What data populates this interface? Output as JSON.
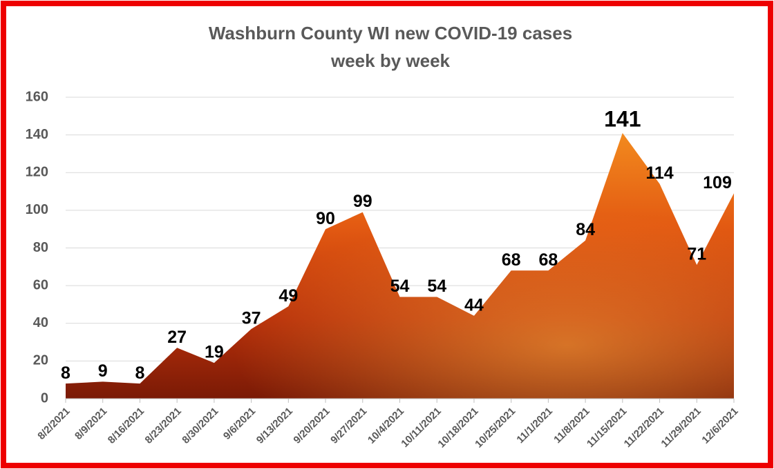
{
  "chart_data": {
    "type": "area",
    "title": [
      "Washburn County WI new COVID-19 cases",
      "week by week"
    ],
    "categories": [
      "8/2/2021",
      "8/9/2021",
      "8/16/2021",
      "8/23/2021",
      "8/30/2021",
      "9/6/2021",
      "9/13/2021",
      "9/20/2021",
      "9/27/2021",
      "10/4/2021",
      "10/11/2021",
      "10/18/2021",
      "10/25/2021",
      "11/1/2021",
      "11/8/2021",
      "11/15/2021",
      "11/22/2021",
      "11/29/2021",
      "12/6/2021"
    ],
    "values": [
      8,
      9,
      8,
      27,
      19,
      37,
      49,
      90,
      99,
      54,
      54,
      44,
      68,
      68,
      84,
      141,
      114,
      71,
      109
    ],
    "color": "#d2430f",
    "ylim": [
      0,
      160
    ],
    "yticks": [
      0,
      20,
      40,
      60,
      80,
      100,
      120,
      140,
      160
    ],
    "grid": true
  }
}
